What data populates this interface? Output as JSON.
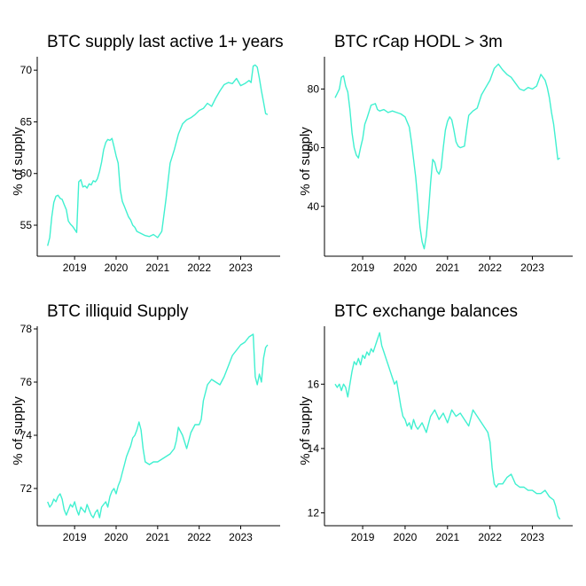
{
  "chart_data": [
    {
      "type": "line",
      "title": "BTC supply last active 1+ years",
      "ylabel": "% of supply",
      "xlabel": "",
      "x_ticks": [
        2019,
        2020,
        2021,
        2022,
        2023
      ],
      "y_ticks": [
        55,
        60,
        65,
        70
      ],
      "xlim": [
        2018.1,
        2023.95
      ],
      "ylim": [
        52.0,
        71.3
      ],
      "grid": false,
      "color": "#40F0D0",
      "x": [
        2018.35,
        2018.4,
        2018.45,
        2018.5,
        2018.55,
        2018.6,
        2018.65,
        2018.7,
        2018.75,
        2018.8,
        2018.85,
        2018.9,
        2018.95,
        2019.0,
        2019.05,
        2019.1,
        2019.15,
        2019.2,
        2019.25,
        2019.3,
        2019.35,
        2019.4,
        2019.45,
        2019.5,
        2019.55,
        2019.6,
        2019.65,
        2019.7,
        2019.75,
        2019.8,
        2019.85,
        2019.9,
        2019.95,
        2020.0,
        2020.05,
        2020.1,
        2020.15,
        2020.2,
        2020.25,
        2020.3,
        2020.35,
        2020.4,
        2020.45,
        2020.5,
        2020.6,
        2020.7,
        2020.8,
        2020.9,
        2021.0,
        2021.1,
        2021.2,
        2021.3,
        2021.4,
        2021.5,
        2021.6,
        2021.7,
        2021.8,
        2021.9,
        2022.0,
        2022.1,
        2022.2,
        2022.3,
        2022.4,
        2022.5,
        2022.6,
        2022.7,
        2022.8,
        2022.9,
        2023.0,
        2023.1,
        2023.2,
        2023.25,
        2023.3,
        2023.35,
        2023.4,
        2023.45,
        2023.5,
        2023.55,
        2023.6,
        2023.65
      ],
      "y": [
        53.0,
        53.8,
        55.8,
        57.2,
        57.8,
        57.9,
        57.6,
        57.5,
        57.0,
        56.5,
        55.4,
        55.1,
        54.9,
        54.6,
        54.3,
        59.2,
        59.4,
        58.7,
        58.8,
        58.6,
        59.0,
        58.9,
        59.3,
        59.2,
        59.5,
        60.2,
        61.1,
        62.3,
        63.0,
        63.3,
        63.2,
        63.4,
        62.6,
        61.7,
        61.0,
        58.4,
        57.3,
        56.8,
        56.3,
        55.8,
        55.5,
        55.0,
        54.8,
        54.4,
        54.2,
        54.0,
        53.9,
        54.1,
        53.8,
        54.4,
        57.5,
        61.0,
        62.3,
        63.8,
        64.8,
        65.2,
        65.4,
        65.7,
        66.1,
        66.3,
        66.8,
        66.5,
        67.3,
        68.0,
        68.6,
        68.8,
        68.7,
        69.2,
        68.5,
        68.7,
        69.0,
        68.8,
        70.4,
        70.5,
        70.3,
        69.2,
        68.0,
        66.9,
        65.8,
        65.7
      ]
    },
    {
      "type": "line",
      "title": "BTC rCap HODL > 3m",
      "ylabel": "% of supply",
      "xlabel": "",
      "x_ticks": [
        2019,
        2020,
        2021,
        2022,
        2023
      ],
      "y_ticks": [
        40,
        60,
        80
      ],
      "xlim": [
        2018.1,
        2023.95
      ],
      "ylim": [
        23.0,
        91.0
      ],
      "grid": false,
      "color": "#40F0D0",
      "x": [
        2018.35,
        2018.4,
        2018.45,
        2018.5,
        2018.55,
        2018.6,
        2018.65,
        2018.7,
        2018.75,
        2018.8,
        2018.85,
        2018.9,
        2018.95,
        2019.0,
        2019.05,
        2019.1,
        2019.2,
        2019.3,
        2019.35,
        2019.4,
        2019.5,
        2019.6,
        2019.7,
        2019.8,
        2019.9,
        2020.0,
        2020.1,
        2020.15,
        2020.2,
        2020.25,
        2020.3,
        2020.35,
        2020.4,
        2020.45,
        2020.5,
        2020.55,
        2020.6,
        2020.65,
        2020.7,
        2020.75,
        2020.8,
        2020.85,
        2020.9,
        2020.95,
        2021.0,
        2021.05,
        2021.1,
        2021.15,
        2021.2,
        2021.25,
        2021.3,
        2021.4,
        2021.45,
        2021.5,
        2021.6,
        2021.7,
        2021.8,
        2021.9,
        2022.0,
        2022.1,
        2022.2,
        2022.3,
        2022.4,
        2022.5,
        2022.6,
        2022.7,
        2022.8,
        2022.9,
        2023.0,
        2023.1,
        2023.2,
        2023.3,
        2023.35,
        2023.4,
        2023.45,
        2023.5,
        2023.55,
        2023.6,
        2023.65
      ],
      "y": [
        77.0,
        78.5,
        80.0,
        84.0,
        84.5,
        81.0,
        79.0,
        73.0,
        65.0,
        60.0,
        57.5,
        56.5,
        60.0,
        63.0,
        68.0,
        70.0,
        74.5,
        75.0,
        73.0,
        72.5,
        73.0,
        72.0,
        72.5,
        72.0,
        71.5,
        70.5,
        67.0,
        62.0,
        56.0,
        50.0,
        42.0,
        33.0,
        28.0,
        25.5,
        30.0,
        38.0,
        48.0,
        56.0,
        55.0,
        52.0,
        51.0,
        53.0,
        60.0,
        66.0,
        69.0,
        70.5,
        69.5,
        66.0,
        62.0,
        60.5,
        60.0,
        60.5,
        66.0,
        71.0,
        72.5,
        73.5,
        78.0,
        80.5,
        83.0,
        87.0,
        88.5,
        86.5,
        85.0,
        84.0,
        82.0,
        80.0,
        79.5,
        80.5,
        80.0,
        81.0,
        85.0,
        83.0,
        80.5,
        77.0,
        72.0,
        68.0,
        62.0,
        56.0,
        56.5
      ]
    },
    {
      "type": "line",
      "title": "BTC illiquid Supply",
      "ylabel": "% of supply",
      "xlabel": "",
      "x_ticks": [
        2019,
        2020,
        2021,
        2022,
        2023
      ],
      "y_ticks": [
        72,
        74,
        76,
        78
      ],
      "xlim": [
        2018.1,
        2023.95
      ],
      "ylim": [
        70.6,
        78.1
      ],
      "grid": false,
      "color": "#40F0D0",
      "x": [
        2018.35,
        2018.4,
        2018.45,
        2018.5,
        2018.55,
        2018.6,
        2018.65,
        2018.7,
        2018.75,
        2018.8,
        2018.85,
        2018.9,
        2018.95,
        2019.0,
        2019.05,
        2019.1,
        2019.15,
        2019.2,
        2019.25,
        2019.3,
        2019.35,
        2019.4,
        2019.45,
        2019.5,
        2019.55,
        2019.6,
        2019.65,
        2019.7,
        2019.75,
        2019.8,
        2019.85,
        2019.9,
        2019.95,
        2020.0,
        2020.05,
        2020.1,
        2020.15,
        2020.2,
        2020.25,
        2020.3,
        2020.35,
        2020.4,
        2020.45,
        2020.5,
        2020.55,
        2020.6,
        2020.65,
        2020.7,
        2020.8,
        2020.9,
        2021.0,
        2021.1,
        2021.2,
        2021.3,
        2021.35,
        2021.4,
        2021.45,
        2021.5,
        2021.6,
        2021.7,
        2021.8,
        2021.9,
        2022.0,
        2022.05,
        2022.1,
        2022.2,
        2022.3,
        2022.4,
        2022.5,
        2022.6,
        2022.7,
        2022.8,
        2022.9,
        2023.0,
        2023.1,
        2023.2,
        2023.3,
        2023.35,
        2023.4,
        2023.45,
        2023.5,
        2023.55,
        2023.6,
        2023.65
      ],
      "y": [
        71.5,
        71.3,
        71.4,
        71.6,
        71.5,
        71.7,
        71.8,
        71.6,
        71.2,
        71.0,
        71.2,
        71.4,
        71.3,
        71.5,
        71.2,
        71.0,
        71.3,
        71.2,
        71.1,
        71.4,
        71.2,
        71.0,
        70.9,
        71.1,
        71.2,
        70.9,
        71.3,
        71.4,
        71.5,
        71.3,
        71.7,
        71.9,
        72.0,
        71.8,
        72.1,
        72.3,
        72.6,
        72.9,
        73.2,
        73.4,
        73.6,
        73.9,
        74.0,
        74.2,
        74.5,
        74.2,
        73.5,
        73.0,
        72.9,
        73.0,
        73.0,
        73.1,
        73.2,
        73.3,
        73.4,
        73.5,
        73.8,
        74.3,
        74.0,
        73.5,
        74.1,
        74.4,
        74.4,
        74.6,
        75.3,
        75.9,
        76.1,
        76.0,
        75.9,
        76.2,
        76.6,
        77.0,
        77.2,
        77.4,
        77.5,
        77.7,
        77.8,
        76.2,
        75.9,
        76.3,
        76.0,
        76.9,
        77.3,
        77.4
      ]
    },
    {
      "type": "line",
      "title": "BTC exchange balances",
      "ylabel": "% of supply",
      "xlabel": "",
      "x_ticks": [
        2019,
        2020,
        2021,
        2022,
        2023
      ],
      "y_ticks": [
        12,
        14,
        16
      ],
      "xlim": [
        2018.1,
        2023.95
      ],
      "ylim": [
        11.6,
        17.8
      ],
      "grid": false,
      "color": "#40F0D0",
      "x": [
        2018.35,
        2018.4,
        2018.45,
        2018.5,
        2018.55,
        2018.6,
        2018.65,
        2018.7,
        2018.75,
        2018.8,
        2018.85,
        2018.9,
        2018.95,
        2019.0,
        2019.05,
        2019.1,
        2019.15,
        2019.2,
        2019.25,
        2019.3,
        2019.35,
        2019.4,
        2019.45,
        2019.5,
        2019.55,
        2019.6,
        2019.65,
        2019.7,
        2019.75,
        2019.8,
        2019.85,
        2019.9,
        2019.95,
        2020.0,
        2020.05,
        2020.1,
        2020.15,
        2020.2,
        2020.25,
        2020.3,
        2020.4,
        2020.5,
        2020.6,
        2020.7,
        2020.8,
        2020.9,
        2021.0,
        2021.1,
        2021.2,
        2021.3,
        2021.4,
        2021.5,
        2021.6,
        2021.7,
        2021.8,
        2021.9,
        2021.95,
        2022.0,
        2022.05,
        2022.1,
        2022.15,
        2022.2,
        2022.3,
        2022.4,
        2022.5,
        2022.6,
        2022.7,
        2022.8,
        2022.9,
        2023.0,
        2023.1,
        2023.2,
        2023.3,
        2023.4,
        2023.5,
        2023.55,
        2023.6,
        2023.65
      ],
      "y": [
        16.0,
        15.9,
        16.0,
        15.8,
        16.0,
        15.9,
        15.6,
        16.0,
        16.4,
        16.7,
        16.6,
        16.8,
        16.6,
        16.9,
        16.8,
        17.0,
        16.9,
        17.1,
        17.0,
        17.2,
        17.4,
        17.6,
        17.2,
        17.0,
        16.8,
        16.6,
        16.4,
        16.2,
        16.0,
        16.1,
        15.7,
        15.3,
        15.0,
        14.9,
        14.7,
        14.8,
        14.6,
        14.9,
        14.7,
        14.6,
        14.8,
        14.5,
        15.0,
        15.2,
        14.9,
        15.1,
        14.8,
        15.2,
        15.0,
        15.1,
        14.9,
        14.7,
        15.2,
        15.0,
        14.8,
        14.6,
        14.5,
        14.2,
        13.4,
        12.9,
        12.8,
        12.9,
        12.9,
        13.1,
        13.2,
        12.9,
        12.8,
        12.8,
        12.7,
        12.7,
        12.6,
        12.6,
        12.7,
        12.5,
        12.4,
        12.2,
        11.9,
        11.8
      ]
    }
  ]
}
